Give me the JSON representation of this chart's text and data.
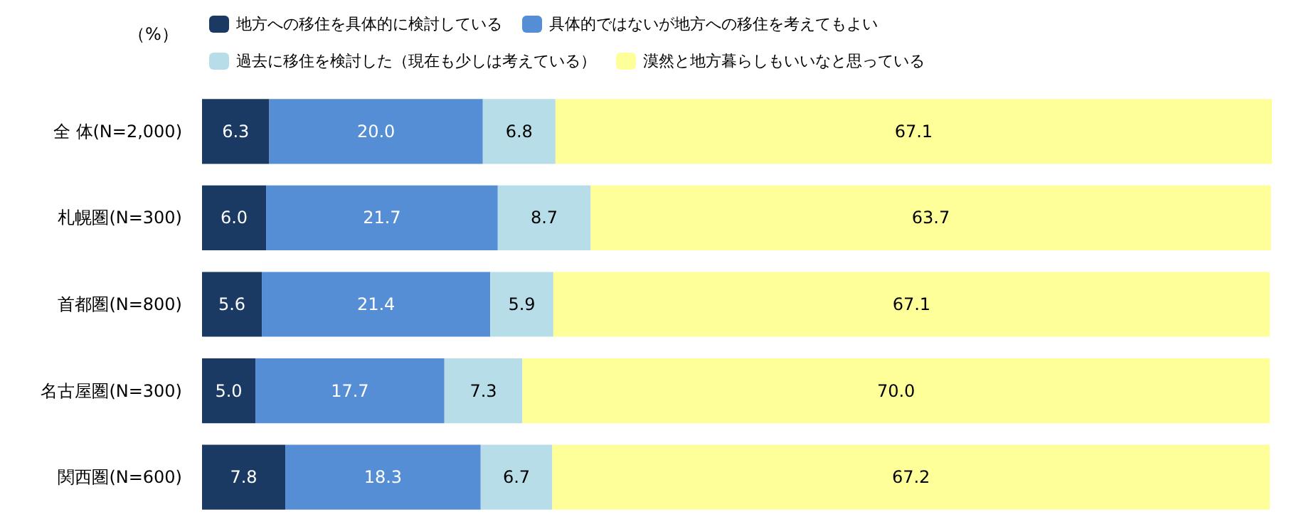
{
  "chart_data": {
    "type": "bar",
    "orientation": "horizontal",
    "stacked": true,
    "legend": "top",
    "xlabel": "（%）",
    "categories": [
      "全 体(N=2,000)",
      "札幌圏(N=300)",
      "首都圏(N=800)",
      "名古屋圏(N=300)",
      "関西圏(N=600)"
    ],
    "series": [
      {
        "name": "地方への移住を具体的に検討している",
        "color": "#1b3a63",
        "values": [
          6.3,
          6.0,
          5.6,
          5.0,
          7.8
        ],
        "value_labels": [
          "6.3",
          "6.0",
          "5.6",
          "5.0",
          "7.8"
        ]
      },
      {
        "name": "具体的ではないが地方への移住を考えてもよい",
        "color": "#558ed5",
        "values": [
          20.0,
          21.7,
          21.4,
          17.7,
          18.3
        ],
        "value_labels": [
          "20.0",
          "21.7",
          "21.4",
          "17.7",
          "18.3"
        ]
      },
      {
        "name": "過去に移住を検討した（現在も少しは考えている）",
        "color": "#b7dde8",
        "values": [
          6.8,
          8.7,
          5.9,
          7.3,
          6.7
        ],
        "value_labels": [
          "6.8",
          "8.7",
          "5.9",
          "7.3",
          "6.7"
        ]
      },
      {
        "name": "漠然と地方暮らしもいいなと思っている",
        "color": "#ffff99",
        "values": [
          67.1,
          63.7,
          67.1,
          70.0,
          67.2
        ],
        "value_labels": [
          "67.1",
          "63.7",
          "67.1",
          "70.0",
          "67.2"
        ]
      }
    ]
  }
}
